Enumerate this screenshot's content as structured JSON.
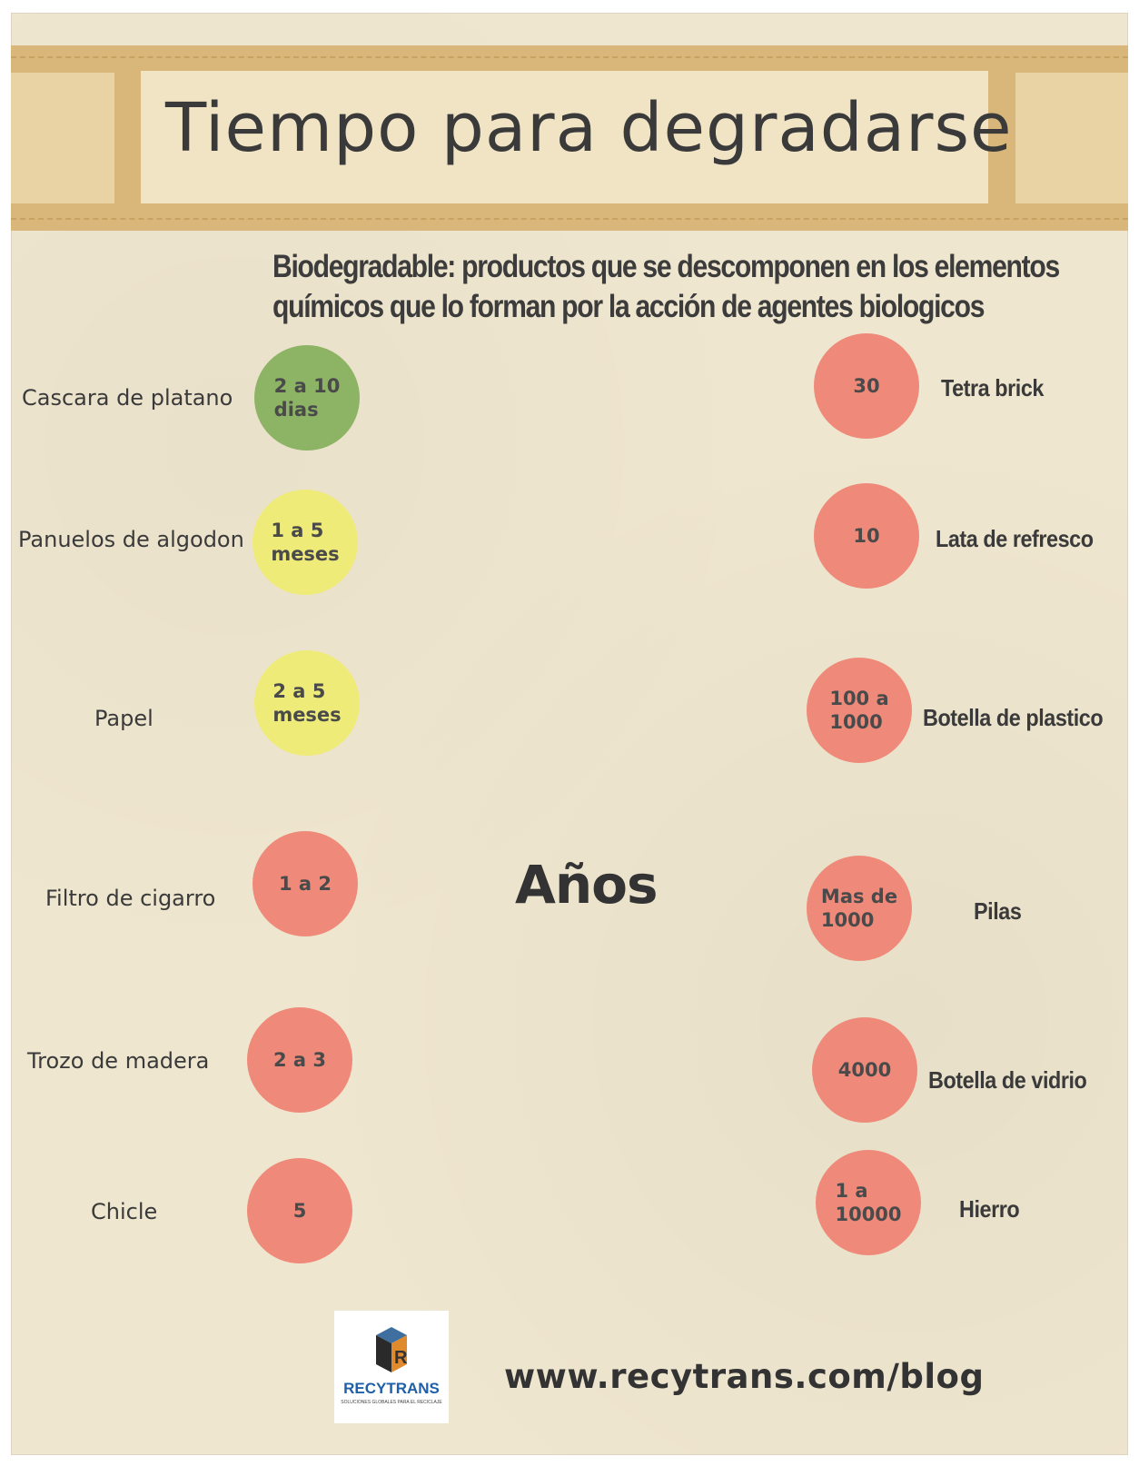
{
  "title": "Tiempo para degradarse",
  "subtitle": {
    "line1": "Biodegradable: productos que se descomponen en los elementos",
    "line2": "químicos que lo forman por la acción de agentes biologicos"
  },
  "unit_label": "Años",
  "left_items": [
    {
      "name": "Cascara de platano",
      "time": "2 a 10\ndias",
      "color": "#8db365"
    },
    {
      "name": "Panuelos de algodon",
      "time": "1 a 5\nmeses",
      "color": "#eeeb78"
    },
    {
      "name": "Papel",
      "time": "2 a 5\nmeses",
      "color": "#eeeb78"
    },
    {
      "name": "Filtro de cigarro",
      "time": "1 a 2",
      "color": "#ef8a7a"
    },
    {
      "name": "Trozo de madera",
      "time": "2 a 3",
      "color": "#ef8a7a"
    },
    {
      "name": "Chicle",
      "time": "5",
      "color": "#ef8a7a"
    }
  ],
  "right_items": [
    {
      "name": "Tetra brick",
      "time": "30",
      "color": "#ef8a7a"
    },
    {
      "name": "Lata de refresco",
      "time": "10",
      "color": "#ef8a7a"
    },
    {
      "name": "Botella de plastico",
      "time": "100 a\n1000",
      "color": "#ef8a7a"
    },
    {
      "name": "Pilas",
      "time": "Mas de\n1000",
      "color": "#ef8a7a"
    },
    {
      "name": "Botella de vidrio",
      "time": "4000",
      "color": "#ef8a7a"
    },
    {
      "name": "Hierro",
      "time": "1 a\n 10000",
      "color": "#ef8a7a"
    }
  ],
  "logo": {
    "name": "RECYTRANS",
    "tagline": "SOLUCIONES GLOBALES PARA EL RECICLAJE"
  },
  "url": "www.recytrans.com/blog"
}
